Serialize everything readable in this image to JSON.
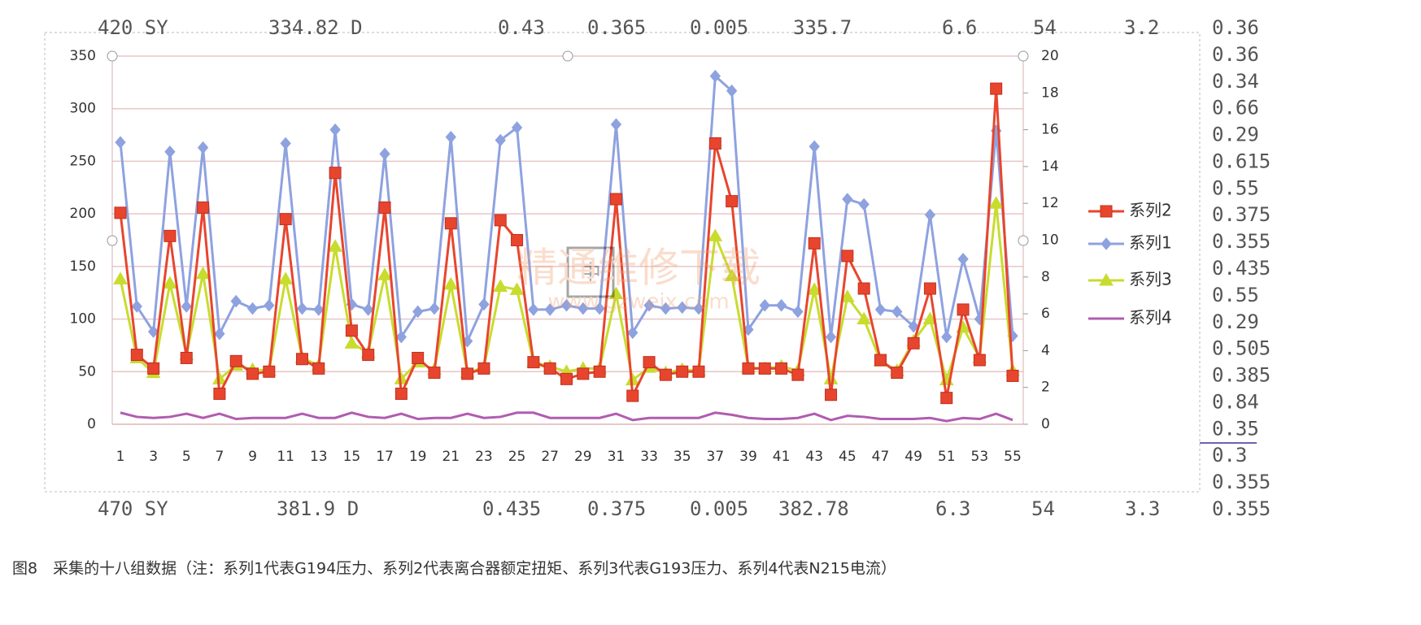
{
  "chart_data": {
    "type": "line",
    "categories": [
      "1",
      null,
      "3",
      null,
      "5",
      null,
      "7",
      null,
      "9",
      null,
      "11",
      null,
      "13",
      null,
      "15",
      null,
      "17",
      null,
      "19",
      null,
      "21",
      null,
      "23",
      null,
      "25",
      null,
      "27",
      null,
      "29",
      null,
      "31",
      null,
      "33",
      null,
      "35",
      null,
      "37",
      null,
      "39",
      null,
      "41",
      null,
      "43",
      null,
      "45",
      null,
      "47",
      null,
      "49",
      null,
      "51",
      null,
      "53",
      null,
      "55"
    ],
    "series": [
      {
        "name": "系列2",
        "color": "#e8452e",
        "marker": "square",
        "values": [
          201,
          66,
          53,
          179,
          63,
          206,
          29,
          60,
          48,
          50,
          195,
          62,
          53,
          239,
          89,
          66,
          206,
          29,
          63,
          49,
          191,
          48,
          53,
          194,
          175,
          59,
          53,
          43,
          48,
          50,
          214,
          27,
          59,
          47,
          50,
          50,
          267,
          212,
          53,
          53,
          53,
          47,
          172,
          28,
          160,
          129,
          61,
          49,
          77,
          129,
          25,
          109,
          61,
          319,
          46
        ]
      },
      {
        "name": "系列1",
        "color": "#8ea2e0",
        "marker": "diamond",
        "values": [
          268,
          112,
          88,
          259,
          112,
          263,
          86,
          117,
          110,
          113,
          267,
          110,
          109,
          280,
          114,
          109,
          257,
          83,
          107,
          110,
          273,
          79,
          114,
          270,
          282,
          109,
          109,
          113,
          110,
          110,
          285,
          87,
          113,
          110,
          111,
          110,
          331,
          317,
          90,
          113,
          113,
          107,
          264,
          83,
          214,
          209,
          109,
          107,
          93,
          199,
          83,
          157,
          100,
          279,
          84
        ]
      },
      {
        "name": "系列3",
        "color": "#c8dc2e",
        "marker": "triangle",
        "values": [
          138,
          63,
          49,
          134,
          66,
          143,
          43,
          56,
          52,
          51,
          138,
          63,
          56,
          169,
          77,
          68,
          142,
          43,
          59,
          52,
          133,
          49,
          54,
          131,
          128,
          59,
          55,
          50,
          53,
          53,
          124,
          42,
          54,
          49,
          52,
          51,
          179,
          141,
          54,
          53,
          55,
          51,
          128,
          43,
          121,
          100,
          60,
          51,
          79,
          100,
          42,
          92,
          63,
          210,
          51
        ]
      },
      {
        "name": "系列4",
        "color": "#b05cb0",
        "marker": "none",
        "values": [
          11,
          7,
          6,
          7,
          10,
          6,
          10,
          5,
          6,
          6,
          6,
          10,
          6,
          6,
          11,
          7,
          6,
          10,
          5,
          6,
          6,
          10,
          6,
          7,
          11,
          11,
          6,
          6,
          6,
          6,
          10,
          4,
          6,
          6,
          6,
          6,
          11,
          9,
          6,
          5,
          5,
          6,
          10,
          4,
          8,
          7,
          5,
          5,
          5,
          6,
          3,
          6,
          5,
          10,
          4
        ]
      }
    ],
    "ylim": [
      0,
      350
    ],
    "yticks": [
      0,
      50,
      100,
      150,
      200,
      250,
      300,
      350
    ],
    "y2lim": [
      0,
      20
    ],
    "y2ticks": [
      0,
      2,
      4,
      6,
      8,
      10,
      12,
      14,
      16,
      18,
      20
    ],
    "grid": true,
    "legend": "right"
  },
  "top_row": [
    "420 SY",
    "334.82 D",
    "0.43",
    "0.365",
    "0.005",
    "335.7",
    "6.6",
    "54",
    "3.2"
  ],
  "bottom_row": [
    "470 SY",
    "381.9 D",
    "0.435",
    "0.375",
    "0.005",
    "382.78",
    "6.3",
    "54",
    "3.3"
  ],
  "side_values": [
    "0.36",
    "0.36",
    "0.34",
    "0.66",
    "0.29",
    "0.615",
    "0.55",
    "0.375",
    "0.355",
    "0.435",
    "0.55",
    "0.29",
    "0.505",
    "0.385",
    "0.84",
    "0.35",
    "0.3",
    "0.355",
    "0.355"
  ],
  "watermark": {
    "text": "精通维修下载",
    "url": "www.gzweix.com",
    "box": "中"
  },
  "caption": "图8　采集的十八组数据（注：系列1代表G194压力、系列2代表离合器额定扭矩、系列3代表G193压力、系列4代表N215电流）"
}
